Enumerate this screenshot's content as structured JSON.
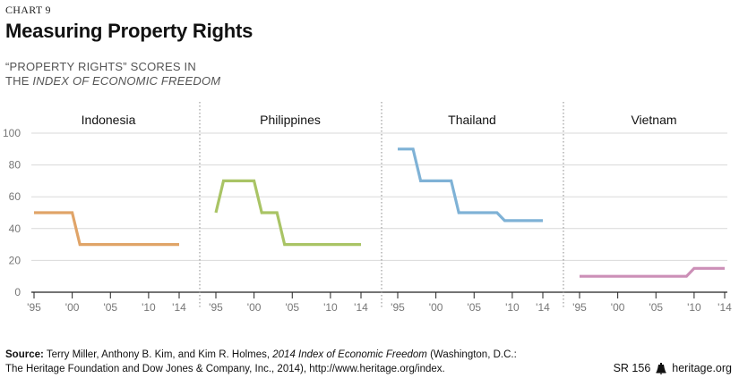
{
  "header": {
    "chart_number": "CHART 9",
    "title": "Measuring Property Rights",
    "subtitle_line1": "“PROPERTY RIGHTS” SCORES IN",
    "subtitle_line2_prefix": "THE ",
    "subtitle_line2_italic": "INDEX OF ECONOMIC FREEDOM"
  },
  "footer": {
    "source_label": "Source:",
    "source_text_1": " Terry Miller, Anthony B. Kim, and Kim R. Holmes, ",
    "source_italic": "2014 Index of Economic Freedom",
    "source_text_2": " (Washington, D.C.:",
    "source_line2": "The Heritage Foundation and Dow Jones & Company, Inc., 2014), http://www.heritage.org/index.",
    "report_id": "SR 156",
    "site": "heritage.org"
  },
  "colors": {
    "Indonesia": "#e0a468",
    "Philippines": "#a9c465",
    "Thailand": "#7fb2d6",
    "Vietnam": "#cc8fb7",
    "axis": "#222222",
    "grid": "#d9d9d9",
    "divider": "#888888"
  },
  "chart_data": {
    "type": "line",
    "ylim": [
      0,
      100
    ],
    "yticks": [
      0,
      20,
      40,
      60,
      80,
      100
    ],
    "xlim": [
      1995,
      2014
    ],
    "xticks": [
      1995,
      2000,
      2005,
      2010,
      2014
    ],
    "xtick_labels": [
      "'95",
      "'00",
      "'05",
      "'10",
      "'14"
    ],
    "panels": [
      {
        "name": "Indonesia",
        "x": [
          1995,
          2000,
          2001,
          2014
        ],
        "y": [
          50,
          50,
          30,
          30
        ]
      },
      {
        "name": "Philippines",
        "x": [
          1995,
          1996,
          2000,
          2001,
          2003,
          2004,
          2014
        ],
        "y": [
          50,
          70,
          70,
          50,
          50,
          30,
          30
        ]
      },
      {
        "name": "Thailand",
        "x": [
          1995,
          1997,
          1998,
          2002,
          2003,
          2008,
          2009,
          2014
        ],
        "y": [
          90,
          90,
          70,
          70,
          50,
          50,
          45,
          45
        ]
      },
      {
        "name": "Vietnam",
        "x": [
          1995,
          2009,
          2010,
          2014
        ],
        "y": [
          10,
          10,
          15,
          15
        ]
      }
    ]
  }
}
